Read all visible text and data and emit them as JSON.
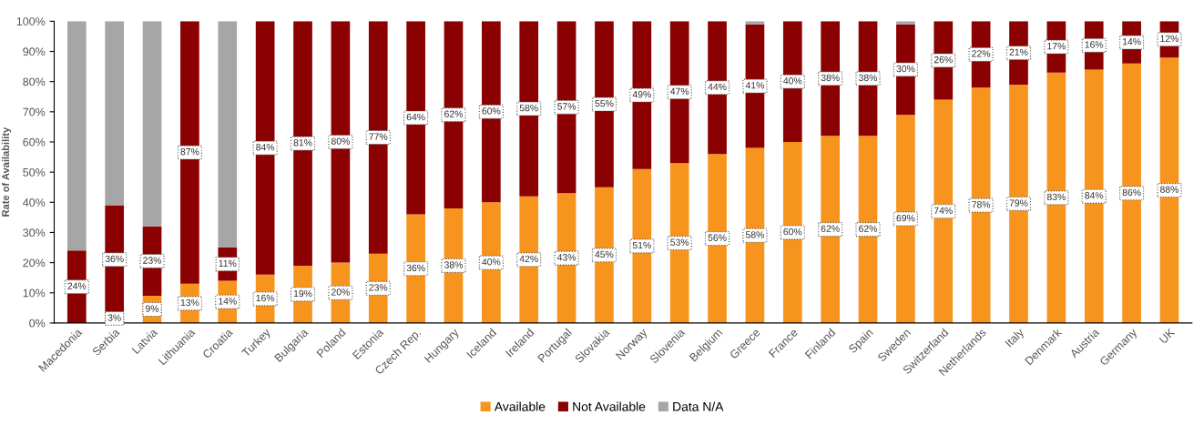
{
  "chart_data": {
    "type": "bar",
    "stacked": true,
    "ylabel": "Rate of Availability",
    "categories": [
      "Macedonia",
      "Serbia",
      "Latvia",
      "Lithuania",
      "Croatia",
      "Turkey",
      "Bulgaria",
      "Poland",
      "Estonia",
      "Czech Rep.",
      "Hungary",
      "Iceland",
      "Ireland",
      "Portugal",
      "Slovakia",
      "Norway",
      "Slovenia",
      "Belgium",
      "Greece",
      "France",
      "Finland",
      "Spain",
      "Sweden",
      "Switzerland",
      "Netherlands",
      "Italy",
      "Denmark",
      "Austria",
      "Germany",
      "UK"
    ],
    "series": [
      {
        "name": "Available",
        "color": "#f7941d",
        "values": [
          0,
          3,
          9,
          13,
          14,
          16,
          19,
          20,
          23,
          36,
          38,
          40,
          42,
          43,
          45,
          51,
          53,
          56,
          58,
          60,
          62,
          62,
          69,
          74,
          78,
          79,
          83,
          84,
          86,
          88
        ],
        "value_labels": [
          null,
          "3%",
          "9%",
          "13%",
          "14%",
          "16%",
          "19%",
          "20%",
          "23%",
          "36%",
          "38%",
          "40%",
          "42%",
          "43%",
          "45%",
          "51%",
          "53%",
          "56%",
          "58%",
          "60%",
          "62%",
          "62%",
          "69%",
          "74%",
          "78%",
          "79%",
          "83%",
          "84%",
          "86%",
          "88%"
        ]
      },
      {
        "name": "Not Available",
        "color": "#8b0000",
        "values": [
          24,
          36,
          23,
          87,
          11,
          84,
          81,
          80,
          77,
          64,
          62,
          60,
          58,
          57,
          55,
          49,
          47,
          44,
          41,
          40,
          38,
          38,
          30,
          26,
          22,
          21,
          17,
          16,
          14,
          12
        ],
        "value_labels": [
          "24%",
          "36%",
          "23%",
          "87%",
          "11%",
          "84%",
          "81%",
          "80%",
          "77%",
          "64%",
          "62%",
          "60%",
          "58%",
          "57%",
          "55%",
          "49%",
          "47%",
          "44%",
          "41%",
          "40%",
          "38%",
          "38%",
          "30%",
          "26%",
          "22%",
          "21%",
          "17%",
          "16%",
          "14%",
          "12%"
        ]
      },
      {
        "name": "Data N/A",
        "color": "#a6a6a6",
        "values": [
          76,
          61,
          68,
          0,
          75,
          0,
          0,
          0,
          0,
          0,
          0,
          0,
          0,
          0,
          0,
          0,
          0,
          0,
          1,
          0,
          0,
          0,
          1,
          0,
          0,
          0,
          0,
          0,
          0,
          0
        ]
      }
    ],
    "ylim": [
      0,
      100
    ],
    "yticks": [
      {
        "value": 0,
        "label": "0%"
      },
      {
        "value": 10,
        "label": "10%"
      },
      {
        "value": 20,
        "label": "20%"
      },
      {
        "value": 30,
        "label": "30%"
      },
      {
        "value": 40,
        "label": "40%"
      },
      {
        "value": 50,
        "label": "50%"
      },
      {
        "value": 60,
        "label": "60%"
      },
      {
        "value": 70,
        "label": "70%"
      },
      {
        "value": 80,
        "label": "80%"
      },
      {
        "value": 90,
        "label": "90%"
      },
      {
        "value": 100,
        "label": "100%"
      }
    ],
    "grid": false,
    "legend": "bottom"
  }
}
